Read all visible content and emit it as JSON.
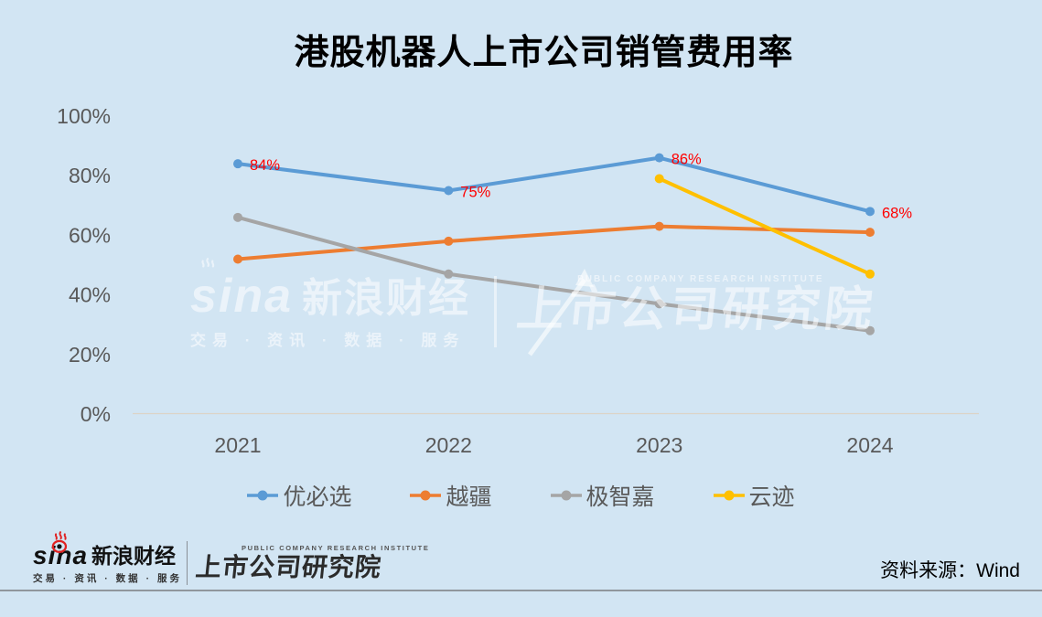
{
  "title": "港股机器人上市公司销管费用率",
  "chart_data": {
    "type": "line",
    "categories": [
      "2021",
      "2022",
      "2023",
      "2024"
    ],
    "series": [
      {
        "name": "优必选",
        "color": "#5B9BD5",
        "values": [
          84,
          75,
          86,
          68
        ],
        "point_labels": [
          "84%",
          "75%",
          "86%",
          "68%"
        ]
      },
      {
        "name": "越疆",
        "color": "#ED7D31",
        "values": [
          52,
          58,
          63,
          61
        ]
      },
      {
        "name": "极智嘉",
        "color": "#A5A5A5",
        "values": [
          66,
          47,
          37,
          28
        ]
      },
      {
        "name": "云迹",
        "color": "#FFC000",
        "values": [
          null,
          null,
          79,
          47
        ]
      }
    ],
    "title": "港股机器人上市公司销管费用率",
    "xlabel": "",
    "ylabel": "",
    "ylim": [
      0,
      100
    ],
    "ytick_step": 20,
    "ytick_suffix": "%",
    "grid": false,
    "legend_position": "bottom",
    "point_label_color": "#FF0000",
    "axis_text_color": "#595959"
  },
  "watermark": {
    "sina": "sina",
    "brand": "新浪财经",
    "tagline": "交易 · 资讯 · 数据 · 服务",
    "institute_en": "PUBLIC COMPANY RESEARCH INSTITUTE",
    "institute": "上市公司研究院"
  },
  "footer": {
    "sina": "sina",
    "brand": "新浪财经",
    "tagline": "交易 · 资讯 · 数据 · 服务",
    "institute_en": "PUBLIC COMPANY RESEARCH INSTITUTE",
    "institute": "上市公司研究院",
    "source": "资料来源：Wind"
  }
}
